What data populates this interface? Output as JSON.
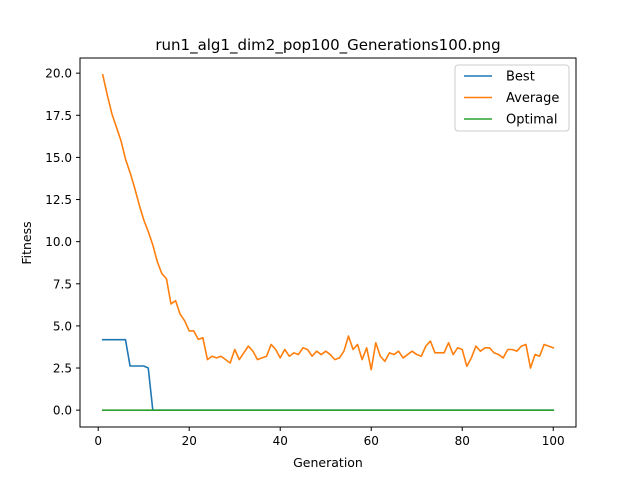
{
  "chart_data": {
    "type": "line",
    "title": "run1_alg1_dim2_pop100_Generations100.png",
    "xlabel": "Generation",
    "ylabel": "Fitness",
    "xlim": [
      -4,
      105
    ],
    "ylim": [
      -1.0,
      20.9
    ],
    "xticks": [
      0,
      20,
      40,
      60,
      80,
      100
    ],
    "xtick_labels": [
      "0",
      "20",
      "40",
      "60",
      "80",
      "100"
    ],
    "yticks": [
      0,
      2.5,
      5,
      7.5,
      10,
      12.5,
      15,
      17.5,
      20
    ],
    "ytick_labels": [
      "0.0",
      "2.5",
      "5.0",
      "7.5",
      "10.0",
      "12.5",
      "15.0",
      "17.5",
      "20.0"
    ],
    "grid": false,
    "legend_position": "upper right",
    "x": [
      1,
      2,
      3,
      4,
      5,
      6,
      7,
      8,
      9,
      10,
      11,
      12,
      13,
      14,
      15,
      16,
      17,
      18,
      19,
      20,
      21,
      22,
      23,
      24,
      25,
      26,
      27,
      28,
      29,
      30,
      31,
      32,
      33,
      34,
      35,
      36,
      37,
      38,
      39,
      40,
      41,
      42,
      43,
      44,
      45,
      46,
      47,
      48,
      49,
      50,
      51,
      52,
      53,
      54,
      55,
      56,
      57,
      58,
      59,
      60,
      61,
      62,
      63,
      64,
      65,
      66,
      67,
      68,
      69,
      70,
      71,
      72,
      73,
      74,
      75,
      76,
      77,
      78,
      79,
      80,
      81,
      82,
      83,
      84,
      85,
      86,
      87,
      88,
      89,
      90,
      91,
      92,
      93,
      94,
      95,
      96,
      97,
      98,
      99,
      100
    ],
    "series": [
      {
        "name": "Best",
        "color": "#1f77b4",
        "values": [
          4.18,
          4.18,
          4.18,
          4.18,
          4.18,
          4.18,
          2.62,
          2.62,
          2.62,
          2.62,
          2.5,
          0,
          0,
          0,
          0,
          0,
          0,
          0,
          0,
          0,
          0,
          0,
          0,
          0,
          0,
          0,
          0,
          0,
          0,
          0,
          0,
          0,
          0,
          0,
          0,
          0,
          0,
          0,
          0,
          0,
          0,
          0,
          0,
          0,
          0,
          0,
          0,
          0,
          0,
          0,
          0,
          0,
          0,
          0,
          0,
          0,
          0,
          0,
          0,
          0,
          0,
          0,
          0,
          0,
          0,
          0,
          0,
          0,
          0,
          0,
          0,
          0,
          0,
          0,
          0,
          0,
          0,
          0,
          0,
          0,
          0,
          0,
          0,
          0,
          0,
          0,
          0,
          0,
          0,
          0,
          0,
          0,
          0,
          0,
          0,
          0,
          0,
          0,
          0,
          0
        ]
      },
      {
        "name": "Average",
        "color": "#ff7f0e",
        "values": [
          19.9,
          18.7,
          17.6,
          16.8,
          16.0,
          14.9,
          14.1,
          13.2,
          12.2,
          11.3,
          10.6,
          9.8,
          8.8,
          8.1,
          7.8,
          6.3,
          6.5,
          5.7,
          5.3,
          4.7,
          4.7,
          4.2,
          4.3,
          3.0,
          3.2,
          3.1,
          3.2,
          3.0,
          2.8,
          3.6,
          3.0,
          3.4,
          3.8,
          3.5,
          3.0,
          3.1,
          3.2,
          3.9,
          3.6,
          3.1,
          3.6,
          3.2,
          3.4,
          3.3,
          3.7,
          3.6,
          3.2,
          3.5,
          3.3,
          3.5,
          3.3,
          3.0,
          3.1,
          3.5,
          4.4,
          3.6,
          3.9,
          3.0,
          3.7,
          2.4,
          4.0,
          3.2,
          2.9,
          3.4,
          3.3,
          3.5,
          3.1,
          3.3,
          3.5,
          3.3,
          3.2,
          3.8,
          4.1,
          3.4,
          3.4,
          3.4,
          4.0,
          3.3,
          3.7,
          3.6,
          2.6,
          3.1,
          3.8,
          3.5,
          3.7,
          3.7,
          3.4,
          3.3,
          3.1,
          3.6,
          3.6,
          3.5,
          3.8,
          3.9,
          2.5,
          3.3,
          3.2,
          3.9,
          3.8,
          3.7
        ]
      },
      {
        "name": "Optimal",
        "color": "#2ca02c",
        "values": [
          0,
          0,
          0,
          0,
          0,
          0,
          0,
          0,
          0,
          0,
          0,
          0,
          0,
          0,
          0,
          0,
          0,
          0,
          0,
          0,
          0,
          0,
          0,
          0,
          0,
          0,
          0,
          0,
          0,
          0,
          0,
          0,
          0,
          0,
          0,
          0,
          0,
          0,
          0,
          0,
          0,
          0,
          0,
          0,
          0,
          0,
          0,
          0,
          0,
          0,
          0,
          0,
          0,
          0,
          0,
          0,
          0,
          0,
          0,
          0,
          0,
          0,
          0,
          0,
          0,
          0,
          0,
          0,
          0,
          0,
          0,
          0,
          0,
          0,
          0,
          0,
          0,
          0,
          0,
          0,
          0,
          0,
          0,
          0,
          0,
          0,
          0,
          0,
          0,
          0,
          0,
          0,
          0,
          0,
          0,
          0,
          0,
          0,
          0,
          0
        ]
      }
    ]
  }
}
